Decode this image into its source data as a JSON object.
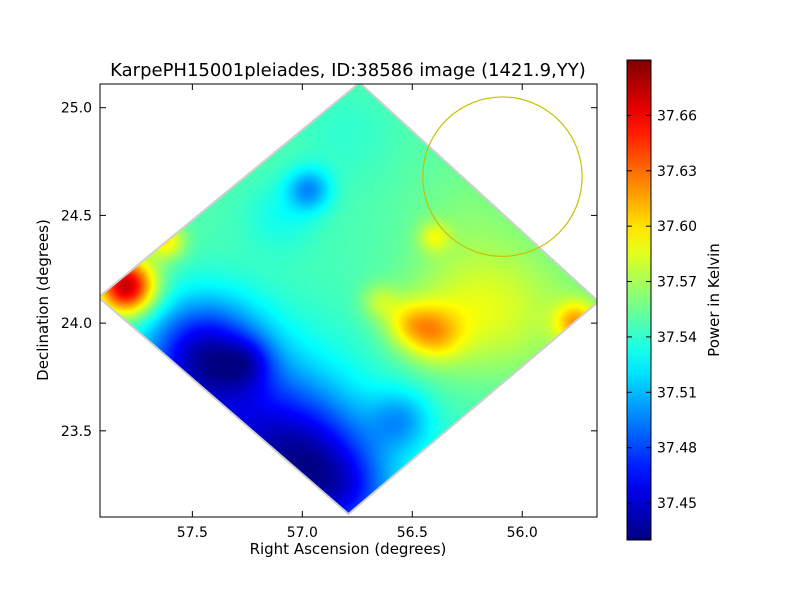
{
  "chart_data": {
    "type": "heatmap",
    "title": "KarpePH15001pleiades, ID:38586 image (1421.9,YY)",
    "xlabel": "Right Ascension (degrees)",
    "ylabel": "Declination (degrees)",
    "colorbar_label": "Power in Kelvin",
    "x_axis_inverted": true,
    "xlim": [
      57.92,
      55.66
    ],
    "ylim": [
      23.1,
      25.11
    ],
    "x_ticks": [
      {
        "value": 57.5,
        "label": "57.5"
      },
      {
        "value": 57.0,
        "label": "57.0"
      },
      {
        "value": 56.5,
        "label": "56.5"
      },
      {
        "value": 56.0,
        "label": "56.0"
      }
    ],
    "y_ticks": [
      {
        "value": 23.5,
        "label": "23.5"
      },
      {
        "value": 24.0,
        "label": "24.0"
      },
      {
        "value": 24.5,
        "label": "24.5"
      },
      {
        "value": 25.0,
        "label": "25.0"
      }
    ],
    "colorbar_range": [
      37.43,
      37.69
    ],
    "colorbar_ticks": [
      {
        "value": 37.45,
        "label": "37.45"
      },
      {
        "value": 37.48,
        "label": "37.48"
      },
      {
        "value": 37.51,
        "label": "37.51"
      },
      {
        "value": 37.54,
        "label": "37.54"
      },
      {
        "value": 37.57,
        "label": "37.57"
      },
      {
        "value": 37.6,
        "label": "37.60"
      },
      {
        "value": 37.63,
        "label": "37.63"
      },
      {
        "value": 37.66,
        "label": "37.66"
      }
    ],
    "colormap": "jet",
    "footprint_vertices": [
      {
        "ra": 56.74,
        "dec": 25.11
      },
      {
        "ra": 55.66,
        "dec": 24.1
      },
      {
        "ra": 56.79,
        "dec": 23.12
      },
      {
        "ra": 57.92,
        "dec": 24.12
      }
    ],
    "background_level": 37.545,
    "features": [
      {
        "ra": 57.8,
        "dec": 24.17,
        "sigma": 0.09,
        "amp": 0.13
      },
      {
        "ra": 57.62,
        "dec": 24.38,
        "sigma": 0.06,
        "amp": 0.05
      },
      {
        "ra": 57.45,
        "dec": 23.85,
        "sigma": 0.18,
        "amp": -0.09
      },
      {
        "ra": 57.2,
        "dec": 23.45,
        "sigma": 0.28,
        "amp": -0.07
      },
      {
        "ra": 57.25,
        "dec": 23.82,
        "sigma": 0.08,
        "amp": -0.03
      },
      {
        "ra": 56.95,
        "dec": 23.35,
        "sigma": 0.2,
        "amp": -0.05
      },
      {
        "ra": 56.8,
        "dec": 23.2,
        "sigma": 0.15,
        "amp": -0.04
      },
      {
        "ra": 56.55,
        "dec": 23.55,
        "sigma": 0.1,
        "amp": -0.035
      },
      {
        "ra": 56.97,
        "dec": 24.62,
        "sigma": 0.07,
        "amp": -0.045
      },
      {
        "ra": 57.1,
        "dec": 24.5,
        "sigma": 0.12,
        "amp": -0.015
      },
      {
        "ra": 56.4,
        "dec": 23.95,
        "sigma": 0.09,
        "amp": 0.045
      },
      {
        "ra": 56.52,
        "dec": 24.0,
        "sigma": 0.08,
        "amp": 0.035
      },
      {
        "ra": 56.28,
        "dec": 24.05,
        "sigma": 0.2,
        "amp": 0.025
      },
      {
        "ra": 56.0,
        "dec": 24.05,
        "sigma": 0.25,
        "amp": 0.025
      },
      {
        "ra": 55.75,
        "dec": 24.0,
        "sigma": 0.07,
        "amp": 0.06
      },
      {
        "ra": 56.4,
        "dec": 24.4,
        "sigma": 0.05,
        "amp": 0.03
      },
      {
        "ra": 56.65,
        "dec": 24.1,
        "sigma": 0.06,
        "amp": 0.025
      },
      {
        "ra": 56.25,
        "dec": 24.5,
        "sigma": 0.2,
        "amp": 0.01
      },
      {
        "ra": 56.8,
        "dec": 24.9,
        "sigma": 0.18,
        "amp": -0.01
      }
    ],
    "aperture_circle": {
      "ra": 56.09,
      "dec": 24.68,
      "radius_deg": 0.37,
      "color": "#c8c000"
    }
  }
}
